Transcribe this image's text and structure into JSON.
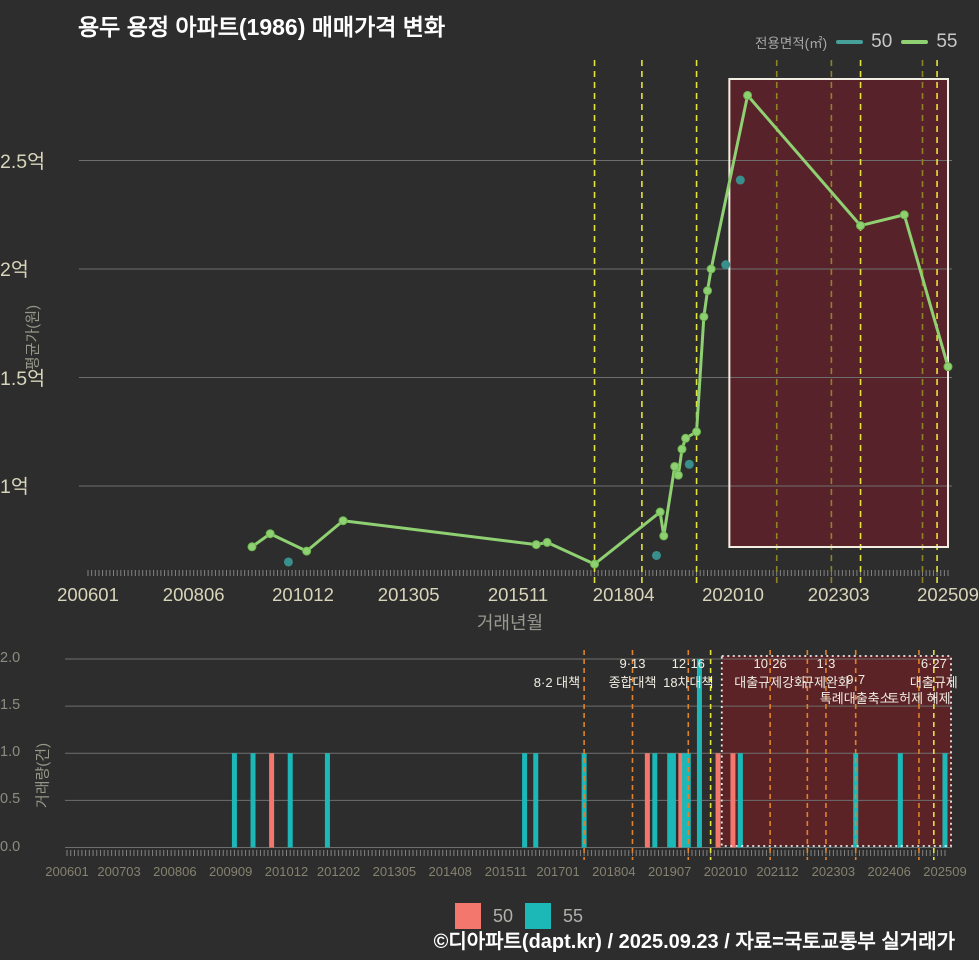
{
  "page": {
    "title": "용두 용정 아파트(1986) 매매가격 변화",
    "footer": "©디아파트(dapt.kr) / 2025.09.23 / 자료=국토교통부 실거래가",
    "background": "#2d2d2d"
  },
  "legend_top": {
    "label": "전용면적(㎡)",
    "items": [
      {
        "name": "50",
        "color": "#46a099"
      },
      {
        "name": "55",
        "color": "#8fd072"
      }
    ]
  },
  "legend_bottom": {
    "items": [
      {
        "name": "50",
        "color": "#f4776d"
      },
      {
        "name": "55",
        "color": "#1cb8b8"
      }
    ]
  },
  "main_chart": {
    "y_axis_name": "평균가(원)",
    "x_axis_name": "거래년월",
    "y_ticks": [
      {
        "label": "1억",
        "value": 1
      },
      {
        "label": "1.5억",
        "value": 1.5
      },
      {
        "label": "2억",
        "value": 2
      },
      {
        "label": "2.5억",
        "value": 2.5
      }
    ],
    "x_ticks": [
      "200601",
      "200806",
      "201012",
      "201305",
      "201511",
      "201804",
      "202010",
      "202303",
      "202509"
    ]
  },
  "volume_chart": {
    "y_axis_name": "거래량(건)",
    "y_ticks": [
      {
        "label": "0.0",
        "value": 0
      },
      {
        "label": "0.5",
        "value": 0.5
      },
      {
        "label": "1.0",
        "value": 1
      },
      {
        "label": "1.5",
        "value": 1.5
      },
      {
        "label": "2.0",
        "value": 2
      }
    ],
    "x_ticks": [
      "200601",
      "200703",
      "200806",
      "200909",
      "201012",
      "201202",
      "201305",
      "201408",
      "201511",
      "201701",
      "201804",
      "201907",
      "202010",
      "202112",
      "202303",
      "202406",
      "202509"
    ]
  },
  "chart_data": [
    {
      "type": "line",
      "title": "매매가격 변화 (평균가)",
      "xlabel": "거래년월",
      "ylabel": "평균가(원)",
      "y_unit": "억원",
      "ylim": [
        0.6,
        2.95
      ],
      "x_range": [
        "200601",
        "202509"
      ],
      "grid": true,
      "highlight_area": {
        "from": "202009",
        "to": "202509"
      },
      "policy_lines": [
        {
          "ym": "201708",
          "color": "yellow"
        },
        {
          "ym": "201809",
          "color": "yellow"
        },
        {
          "ym": "201912",
          "color": "yellow"
        },
        {
          "ym": "202110",
          "color": "olive"
        },
        {
          "ym": "202301",
          "color": "olive"
        },
        {
          "ym": "202309",
          "color": "yellow"
        },
        {
          "ym": "202502",
          "color": "olive"
        },
        {
          "ym": "202506",
          "color": "yellow"
        }
      ],
      "series": [
        {
          "name": "50",
          "style": "scatter",
          "color": "#398f8b",
          "points": [
            [
              "201008",
              0.65
            ],
            [
              "201901",
              0.68
            ],
            [
              "201910",
              1.1
            ],
            [
              "202008",
              2.02
            ],
            [
              "202012",
              2.41
            ]
          ]
        },
        {
          "name": "55",
          "style": "line",
          "color": "#8fd072",
          "points": [
            [
              "200910",
              0.72
            ],
            [
              "201003",
              0.78
            ],
            [
              "201101",
              0.7
            ],
            [
              "201111",
              0.84
            ],
            [
              "201604",
              0.73
            ],
            [
              "201607",
              0.74
            ],
            [
              "201708",
              0.64
            ],
            [
              "201902",
              0.88
            ],
            [
              "201903",
              0.77
            ],
            [
              "201906",
              1.09
            ],
            [
              "201907",
              1.05
            ],
            [
              "201908",
              1.17
            ],
            [
              "201909",
              1.22
            ],
            [
              "201912",
              1.25
            ],
            [
              "202002",
              1.78
            ],
            [
              "202003",
              1.9
            ],
            [
              "202004",
              2.0
            ],
            [
              "202102",
              2.8
            ],
            [
              "202309",
              2.2
            ],
            [
              "202409",
              2.25
            ],
            [
              "202509",
              1.55
            ]
          ]
        }
      ]
    },
    {
      "type": "bar",
      "title": "거래량",
      "xlabel": "거래년월",
      "ylabel": "거래량(건)",
      "ylim": [
        0,
        2
      ],
      "x_range": [
        "200601",
        "202509"
      ],
      "grid": true,
      "highlight_area": {
        "from": "202009",
        "to": "202509"
      },
      "policy_lines": [
        {
          "ym": "201708",
          "color": "orange",
          "line1": "",
          "line2": "8·2 대책",
          "line3": "",
          "align": "right"
        },
        {
          "ym": "201809",
          "color": "orange",
          "line1": "9·13",
          "line2": "종합대책",
          "line3": ""
        },
        {
          "ym": "201912",
          "color": "orange",
          "line1": "12·16",
          "line2": "18차대책",
          "line3": ""
        },
        {
          "ym": "202006",
          "color": "yellow",
          "line1": "",
          "line2": "",
          "line3": ""
        },
        {
          "ym": "202110",
          "color": "orange",
          "line1": "10·26",
          "line2": "대출규제강화",
          "line3": ""
        },
        {
          "ym": "202208",
          "color": "orange",
          "line1": "",
          "line2": "",
          "line3": ""
        },
        {
          "ym": "202301",
          "color": "orange",
          "line1": "1·3",
          "line2": "규제완화",
          "line3": ""
        },
        {
          "ym": "202309",
          "color": "orange",
          "line1": "",
          "line2": "9·7",
          "line3": "특례대출축소"
        },
        {
          "ym": "202502",
          "color": "orange",
          "line1": "",
          "line2": "",
          "line3": "토허제 해제"
        },
        {
          "ym": "202506",
          "color": "yellow",
          "line1": "6·27",
          "line2": "대출규제",
          "line3": ""
        }
      ],
      "series": [
        {
          "name": "50",
          "color": "#f4776d",
          "bars": [
            [
              "201008",
              1
            ],
            [
              "201901",
              1
            ],
            [
              "201910",
              1
            ],
            [
              "202008",
              1
            ],
            [
              "202012",
              1
            ]
          ]
        },
        {
          "name": "55",
          "color": "#1cb8b8",
          "bars": [
            [
              "200910",
              1
            ],
            [
              "201003",
              1
            ],
            [
              "201101",
              1
            ],
            [
              "201111",
              1
            ],
            [
              "201604",
              1
            ],
            [
              "201607",
              1
            ],
            [
              "201708",
              1
            ],
            [
              "201903",
              1
            ],
            [
              "201907",
              1
            ],
            [
              "201908",
              1
            ],
            [
              "201911",
              1
            ],
            [
              "201912",
              1
            ],
            [
              "202003",
              2
            ],
            [
              "202102",
              1
            ],
            [
              "202309",
              1
            ],
            [
              "202409",
              1
            ],
            [
              "202509",
              1
            ]
          ]
        }
      ]
    }
  ]
}
